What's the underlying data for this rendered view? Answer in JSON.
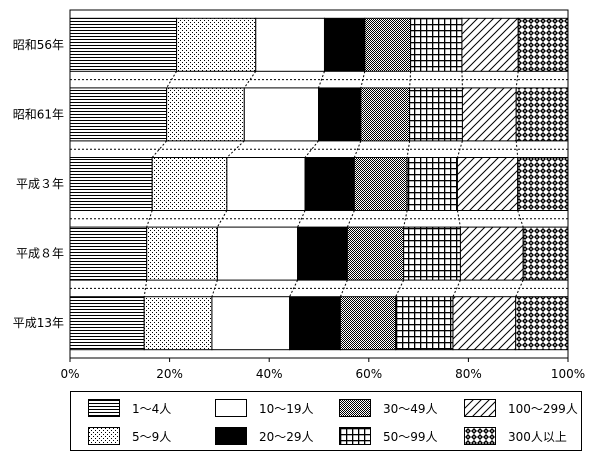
{
  "chart_data": {
    "type": "stacked-bar-horizontal-100",
    "categories": [
      "昭和56年",
      "昭和61年",
      "平成３年",
      "平成８年",
      "平成13年"
    ],
    "x_ticks": [
      "0%",
      "20%",
      "40%",
      "60%",
      "80%",
      "100%"
    ],
    "xlim": [
      0,
      100
    ],
    "grid": false,
    "legend_position": "bottom",
    "series": [
      {
        "name": "1～4人",
        "pattern": "hlines",
        "values": [
          21.4,
          19.4,
          16.5,
          15.4,
          14.9
        ]
      },
      {
        "name": "5～9人",
        "pattern": "dots",
        "values": [
          15.9,
          15.6,
          15.0,
          14.2,
          13.6
        ]
      },
      {
        "name": "10～19人",
        "pattern": "white",
        "values": [
          13.8,
          14.9,
          15.7,
          16.1,
          15.6
        ]
      },
      {
        "name": "20～29人",
        "pattern": "black",
        "values": [
          8.1,
          8.5,
          9.9,
          10.0,
          10.2
        ]
      },
      {
        "name": "30～49人",
        "pattern": "dense-dots",
        "values": [
          9.2,
          9.8,
          10.6,
          11.3,
          11.1
        ]
      },
      {
        "name": "50～99人",
        "pattern": "grid",
        "values": [
          10.3,
          10.6,
          10.1,
          11.4,
          11.5
        ]
      },
      {
        "name": "100～299人",
        "pattern": "diagonal",
        "values": [
          11.3,
          10.8,
          12.1,
          12.6,
          12.6
        ]
      },
      {
        "name": "300人以上",
        "pattern": "diamonds",
        "values": [
          10.0,
          10.4,
          10.1,
          9.0,
          10.5
        ]
      }
    ]
  }
}
